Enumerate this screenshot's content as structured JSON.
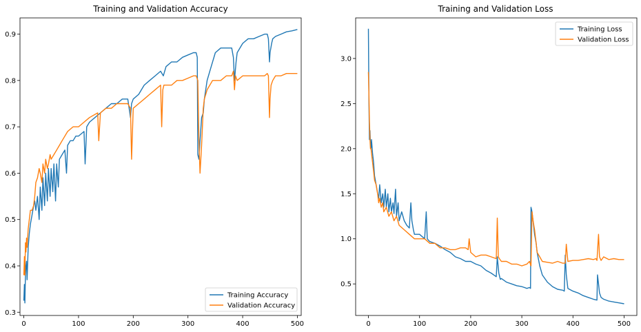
{
  "colors": {
    "training": "#1f77b4",
    "validation": "#ff7f0e"
  },
  "chart_data": [
    {
      "type": "line",
      "title": "Training and Validation Accuracy",
      "xlabel": "",
      "ylabel": "",
      "xlim": [
        -7,
        507
      ],
      "ylim": [
        0.293,
        0.935
      ],
      "xticks": [
        0,
        100,
        200,
        300,
        400,
        500
      ],
      "yticks": [
        0.3,
        0.4,
        0.5,
        0.6,
        0.7,
        0.8,
        0.9
      ],
      "legend": "lower-right",
      "grid": false,
      "series": [
        {
          "name": "Training Accuracy",
          "color": "#1f77b4",
          "x": [
            0,
            1,
            2,
            3,
            4,
            5,
            6,
            8,
            10,
            12,
            15,
            18,
            20,
            22,
            25,
            28,
            30,
            33,
            35,
            38,
            40,
            43,
            45,
            48,
            50,
            53,
            55,
            58,
            60,
            63,
            65,
            70,
            75,
            78,
            80,
            85,
            90,
            95,
            100,
            110,
            112,
            115,
            120,
            130,
            140,
            150,
            160,
            170,
            180,
            190,
            195,
            197,
            200,
            210,
            220,
            230,
            240,
            250,
            255,
            260,
            270,
            280,
            290,
            300,
            310,
            315,
            317,
            318,
            320,
            322,
            325,
            328,
            330,
            335,
            340,
            345,
            350,
            360,
            370,
            380,
            383,
            385,
            388,
            390,
            400,
            410,
            420,
            430,
            440,
            445,
            447,
            449,
            450,
            453,
            455,
            460,
            470,
            480,
            490,
            500
          ],
          "values": [
            0.325,
            0.36,
            0.32,
            0.38,
            0.4,
            0.41,
            0.37,
            0.44,
            0.47,
            0.49,
            0.51,
            0.53,
            0.54,
            0.52,
            0.55,
            0.5,
            0.57,
            0.52,
            0.59,
            0.53,
            0.6,
            0.54,
            0.61,
            0.55,
            0.61,
            0.56,
            0.62,
            0.54,
            0.62,
            0.57,
            0.63,
            0.64,
            0.65,
            0.6,
            0.66,
            0.67,
            0.67,
            0.68,
            0.68,
            0.69,
            0.62,
            0.7,
            0.71,
            0.72,
            0.73,
            0.74,
            0.75,
            0.75,
            0.76,
            0.76,
            0.72,
            0.75,
            0.76,
            0.77,
            0.79,
            0.8,
            0.81,
            0.82,
            0.81,
            0.83,
            0.84,
            0.84,
            0.85,
            0.855,
            0.86,
            0.86,
            0.85,
            0.64,
            0.63,
            0.67,
            0.72,
            0.73,
            0.76,
            0.8,
            0.82,
            0.84,
            0.86,
            0.87,
            0.87,
            0.87,
            0.85,
            0.8,
            0.84,
            0.86,
            0.88,
            0.89,
            0.89,
            0.895,
            0.9,
            0.9,
            0.89,
            0.84,
            0.86,
            0.88,
            0.89,
            0.895,
            0.9,
            0.905,
            0.907,
            0.91
          ]
        },
        {
          "name": "Validation Accuracy",
          "color": "#ff7f0e",
          "x": [
            0,
            1,
            2,
            3,
            4,
            5,
            6,
            8,
            10,
            12,
            15,
            18,
            20,
            22,
            25,
            28,
            30,
            33,
            35,
            38,
            40,
            43,
            45,
            48,
            50,
            55,
            60,
            65,
            70,
            80,
            90,
            100,
            110,
            120,
            135,
            137,
            140,
            150,
            160,
            170,
            180,
            190,
            195,
            197,
            200,
            210,
            220,
            230,
            240,
            250,
            252,
            254,
            256,
            260,
            270,
            280,
            290,
            300,
            310,
            315,
            318,
            320,
            322,
            325,
            328,
            330,
            335,
            340,
            345,
            350,
            360,
            370,
            380,
            383,
            385,
            387,
            390,
            400,
            410,
            420,
            430,
            440,
            445,
            447,
            449,
            450,
            452,
            455,
            460,
            470,
            480,
            490,
            500
          ],
          "values": [
            0.38,
            0.42,
            0.38,
            0.45,
            0.43,
            0.46,
            0.44,
            0.48,
            0.5,
            0.52,
            0.52,
            0.53,
            0.55,
            0.58,
            0.59,
            0.61,
            0.6,
            0.58,
            0.62,
            0.6,
            0.63,
            0.61,
            0.62,
            0.64,
            0.63,
            0.64,
            0.65,
            0.66,
            0.67,
            0.69,
            0.7,
            0.7,
            0.71,
            0.72,
            0.73,
            0.67,
            0.73,
            0.74,
            0.74,
            0.75,
            0.75,
            0.75,
            0.74,
            0.63,
            0.74,
            0.75,
            0.76,
            0.77,
            0.78,
            0.79,
            0.7,
            0.78,
            0.79,
            0.79,
            0.79,
            0.8,
            0.8,
            0.805,
            0.81,
            0.81,
            0.8,
            0.67,
            0.6,
            0.66,
            0.74,
            0.76,
            0.78,
            0.79,
            0.8,
            0.8,
            0.8,
            0.81,
            0.81,
            0.82,
            0.78,
            0.81,
            0.8,
            0.81,
            0.81,
            0.81,
            0.81,
            0.81,
            0.815,
            0.81,
            0.72,
            0.76,
            0.79,
            0.8,
            0.81,
            0.81,
            0.815,
            0.815,
            0.815
          ]
        }
      ]
    },
    {
      "type": "line",
      "title": "Training and Validation Loss",
      "xlabel": "",
      "ylabel": "",
      "xlim": [
        -25,
        525
      ],
      "ylim": [
        0.15,
        3.45
      ],
      "xticks": [
        0,
        100,
        200,
        300,
        400,
        500
      ],
      "yticks": [
        0.5,
        1.0,
        1.5,
        2.0,
        2.5,
        3.0
      ],
      "legend": "top-right",
      "grid": false,
      "series": [
        {
          "name": "Training Loss",
          "color": "#1f77b4",
          "x": [
            0,
            1,
            2,
            3,
            4,
            5,
            6,
            8,
            10,
            12,
            15,
            18,
            20,
            22,
            25,
            28,
            30,
            33,
            35,
            38,
            40,
            43,
            45,
            48,
            50,
            53,
            55,
            58,
            60,
            65,
            70,
            75,
            80,
            83,
            85,
            88,
            90,
            100,
            110,
            113,
            115,
            118,
            120,
            130,
            140,
            150,
            160,
            170,
            180,
            190,
            200,
            210,
            220,
            230,
            240,
            250,
            252,
            255,
            258,
            260,
            270,
            280,
            290,
            300,
            310,
            315,
            317,
            318,
            320,
            322,
            325,
            328,
            330,
            335,
            340,
            350,
            360,
            370,
            380,
            383,
            385,
            387,
            390,
            400,
            410,
            420,
            430,
            440,
            447,
            448,
            450,
            452,
            455,
            460,
            470,
            480,
            490,
            500
          ],
          "values": [
            3.33,
            2.5,
            2.1,
            2.2,
            2.05,
            2.0,
            2.1,
            1.95,
            1.85,
            1.7,
            1.6,
            1.5,
            1.45,
            1.6,
            1.4,
            1.5,
            1.35,
            1.55,
            1.35,
            1.5,
            1.3,
            1.45,
            1.3,
            1.4,
            1.28,
            1.55,
            1.25,
            1.4,
            1.2,
            1.3,
            1.2,
            1.15,
            1.12,
            1.4,
            1.2,
            1.1,
            1.05,
            1.05,
            1.0,
            1.3,
            1.0,
            0.98,
            0.97,
            0.95,
            0.92,
            0.88,
            0.85,
            0.8,
            0.78,
            0.75,
            0.75,
            0.72,
            0.7,
            0.65,
            0.62,
            0.58,
            0.8,
            0.62,
            0.55,
            0.56,
            0.52,
            0.5,
            0.48,
            0.47,
            0.45,
            0.46,
            0.45,
            1.35,
            1.3,
            1.2,
            1.05,
            0.95,
            0.85,
            0.7,
            0.6,
            0.52,
            0.47,
            0.44,
            0.43,
            0.42,
            0.82,
            0.6,
            0.45,
            0.42,
            0.4,
            0.37,
            0.35,
            0.33,
            0.32,
            0.6,
            0.5,
            0.4,
            0.35,
            0.33,
            0.31,
            0.3,
            0.29,
            0.28
          ]
        },
        {
          "name": "Validation Loss",
          "color": "#ff7f0e",
          "x": [
            0,
            1,
            2,
            3,
            4,
            5,
            6,
            8,
            10,
            12,
            15,
            18,
            20,
            22,
            25,
            28,
            30,
            35,
            40,
            45,
            50,
            55,
            60,
            70,
            80,
            90,
            100,
            110,
            120,
            130,
            140,
            150,
            160,
            170,
            180,
            190,
            195,
            197,
            200,
            210,
            220,
            230,
            240,
            250,
            252,
            254,
            256,
            260,
            270,
            280,
            290,
            300,
            310,
            315,
            318,
            320,
            322,
            325,
            328,
            330,
            335,
            340,
            350,
            360,
            370,
            380,
            385,
            387,
            390,
            400,
            410,
            420,
            430,
            440,
            445,
            447,
            449,
            450,
            452,
            455,
            460,
            470,
            480,
            490,
            500
          ],
          "values": [
            2.85,
            2.6,
            2.3,
            2.1,
            2.0,
            2.0,
            1.95,
            1.85,
            1.75,
            1.65,
            1.6,
            1.5,
            1.4,
            1.45,
            1.35,
            1.4,
            1.3,
            1.35,
            1.25,
            1.3,
            1.2,
            1.25,
            1.15,
            1.1,
            1.05,
            1.0,
            1.0,
            1.0,
            0.95,
            0.95,
            0.9,
            0.9,
            0.88,
            0.88,
            0.9,
            0.9,
            0.88,
            1.0,
            0.85,
            0.8,
            0.82,
            0.82,
            0.8,
            0.78,
            1.23,
            0.8,
            0.78,
            0.75,
            0.75,
            0.72,
            0.72,
            0.7,
            0.72,
            0.75,
            0.7,
            1.3,
            1.2,
            1.1,
            0.95,
            0.85,
            0.8,
            0.75,
            0.74,
            0.73,
            0.75,
            0.73,
            0.73,
            0.94,
            0.75,
            0.76,
            0.76,
            0.77,
            0.78,
            0.77,
            0.78,
            0.76,
            0.95,
            1.05,
            0.8,
            0.76,
            0.8,
            0.77,
            0.78,
            0.77,
            0.77
          ]
        }
      ]
    }
  ]
}
